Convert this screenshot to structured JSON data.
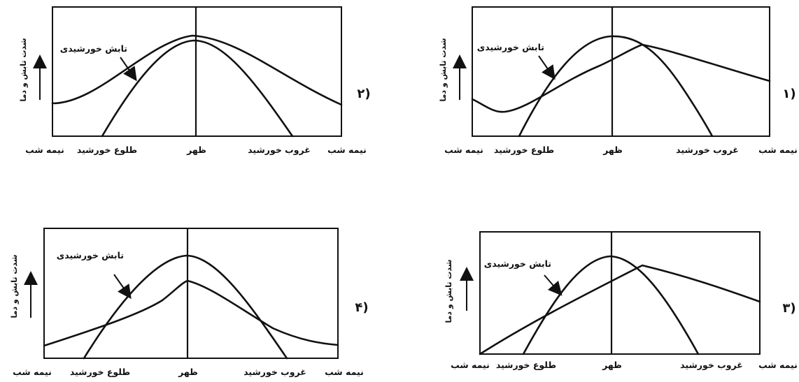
{
  "diagram": {
    "time_labels": {
      "midnight": "نیمه شب",
      "sunrise": "طلوع خورشید",
      "noon": "ظهر",
      "sunset": "غروب خورشید"
    },
    "curve_label": "تابش خورشیدی",
    "y_axis_label": "شدت تابش و دما",
    "options": [
      {
        "id": "1",
        "label": "۱)"
      },
      {
        "id": "2",
        "label": "۲)"
      },
      {
        "id": "3",
        "label": "۳)"
      },
      {
        "id": "4",
        "label": "۴)"
      }
    ]
  }
}
